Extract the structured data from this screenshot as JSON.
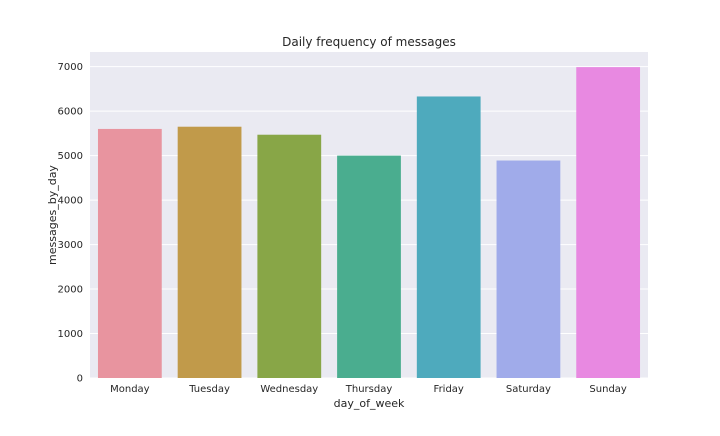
{
  "chart_data": {
    "type": "bar",
    "title": "Daily frequency of messages",
    "xlabel": "day_of_week",
    "ylabel": "messages_by_day",
    "categories": [
      "Monday",
      "Tuesday",
      "Wednesday",
      "Thursday",
      "Friday",
      "Saturday",
      "Sunday"
    ],
    "values": [
      5600,
      5650,
      5470,
      5000,
      6330,
      4890,
      6990
    ],
    "colors": [
      "#e8949f",
      "#c19a4a",
      "#88a647",
      "#4aad8f",
      "#4eaabd",
      "#a0abea",
      "#e889e1"
    ],
    "ylim": [
      0,
      7330
    ],
    "yticks": [
      0,
      1000,
      2000,
      3000,
      4000,
      5000,
      6000,
      7000
    ],
    "grid": true,
    "background": "#eaeaf2",
    "legend": "none"
  }
}
